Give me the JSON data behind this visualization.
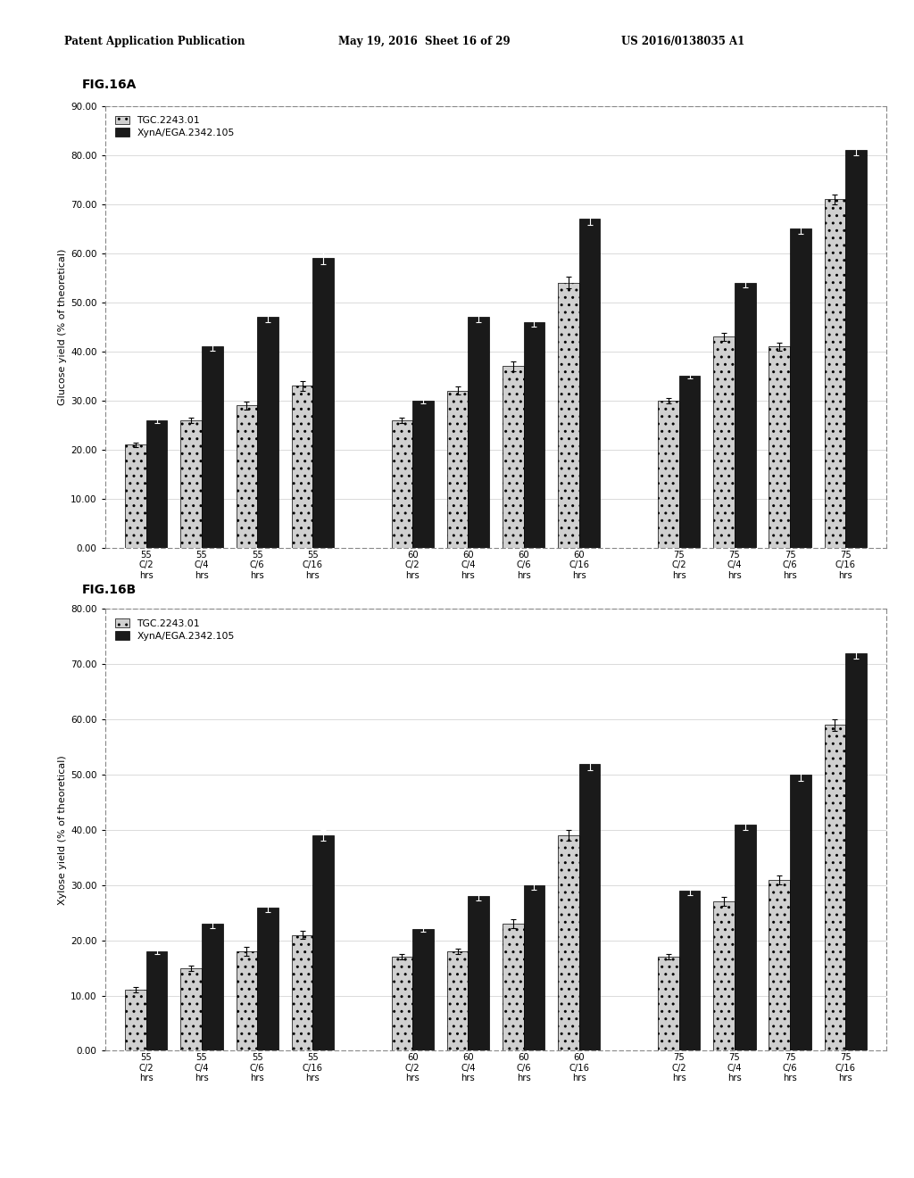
{
  "header_left": "Patent Application Publication",
  "header_mid": "May 19, 2016  Sheet 16 of 29",
  "header_right": "US 2016/0138035 A1",
  "fig_label_A": "FIG.16A",
  "fig_label_B": "FIG.16B",
  "legend_label1": "TGC.2243.01",
  "legend_label2": "XynA/EGA.2342.105",
  "ylabel_A": "Glucose yield (% of theoretical)",
  "ylabel_B": "Xylose yield (% of theoretical)",
  "ylim_A": [
    0,
    90
  ],
  "ylim_B": [
    0,
    80
  ],
  "yticks_A": [
    0.0,
    10.0,
    20.0,
    30.0,
    40.0,
    50.0,
    60.0,
    70.0,
    80.0,
    90.0
  ],
  "yticks_B": [
    0.0,
    10.0,
    20.0,
    30.0,
    40.0,
    50.0,
    60.0,
    70.0,
    80.0
  ],
  "data_A_tgc": [
    21.0,
    26.0,
    29.0,
    33.0,
    26.0,
    32.0,
    37.0,
    54.0,
    30.0,
    43.0,
    41.0,
    71.0
  ],
  "data_A_xyn": [
    26.0,
    41.0,
    47.0,
    59.0,
    30.0,
    47.0,
    46.0,
    67.0,
    35.0,
    54.0,
    65.0,
    81.0
  ],
  "err_A_tgc": [
    0.5,
    0.5,
    0.8,
    1.0,
    0.5,
    0.8,
    1.0,
    1.2,
    0.5,
    0.8,
    0.8,
    1.0
  ],
  "err_A_xyn": [
    0.5,
    0.8,
    1.0,
    1.2,
    0.5,
    1.0,
    1.0,
    1.2,
    0.5,
    1.0,
    1.0,
    1.0
  ],
  "data_B_tgc": [
    11.0,
    15.0,
    18.0,
    21.0,
    17.0,
    18.0,
    23.0,
    39.0,
    17.0,
    27.0,
    31.0,
    59.0
  ],
  "data_B_xyn": [
    18.0,
    23.0,
    26.0,
    39.0,
    22.0,
    28.0,
    30.0,
    52.0,
    29.0,
    41.0,
    50.0,
    72.0
  ],
  "err_B_tgc": [
    0.5,
    0.5,
    0.8,
    0.8,
    0.5,
    0.5,
    0.8,
    1.0,
    0.5,
    0.8,
    0.8,
    1.0
  ],
  "err_B_xyn": [
    0.5,
    0.8,
    0.8,
    1.0,
    0.5,
    0.8,
    0.8,
    1.2,
    0.8,
    1.0,
    1.2,
    1.0
  ],
  "color_tgc": "#d0d0d0",
  "color_xyn": "#1a1a1a",
  "hatch_tgc": "..",
  "background": "#ffffff",
  "temp_labels": [
    "55",
    "60",
    "75"
  ],
  "cond_labels": [
    "C/2",
    "C/4",
    "C/6",
    "C/16"
  ]
}
